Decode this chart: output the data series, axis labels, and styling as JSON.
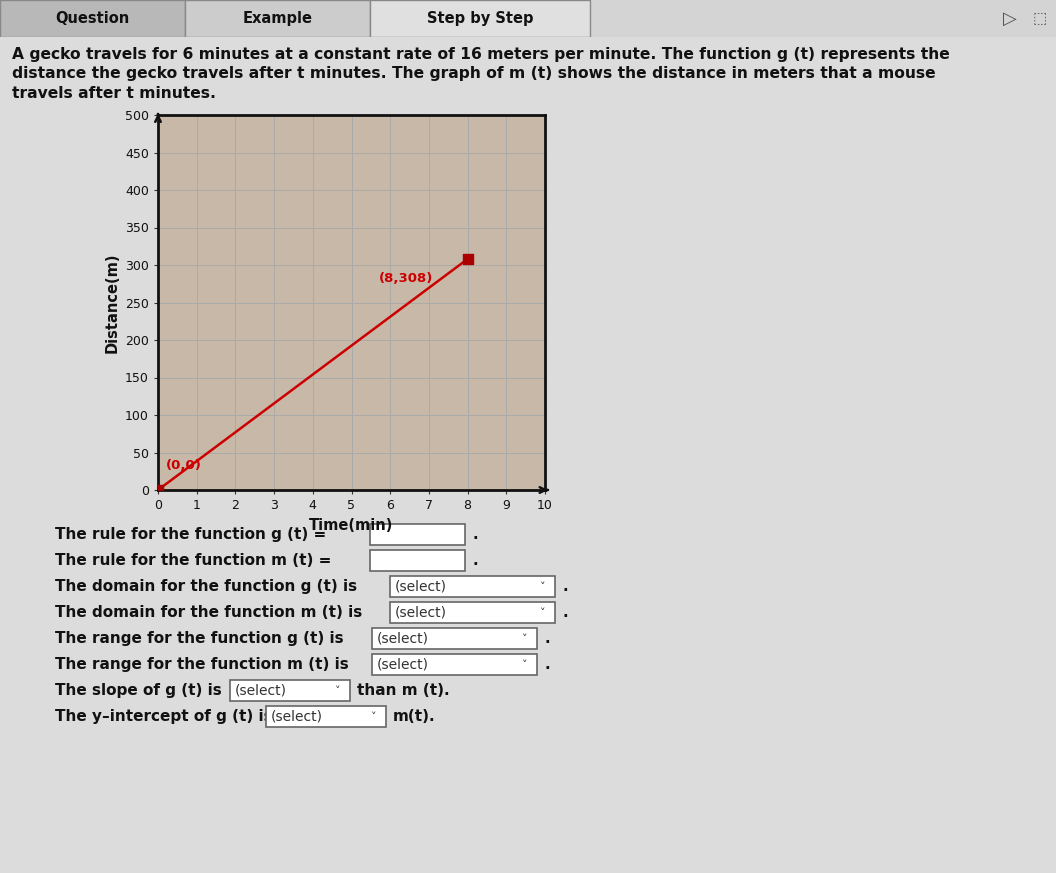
{
  "bg_color": "#d4d4d4",
  "title_text": "A gecko travels for 6 minutes at a constant rate of 16 meters per minute. The function g (t) represents the\ndistance the gecko travels after t minutes. The graph of m (t) shows the distance in meters that a mouse\ntravels after t minutes.",
  "graph": {
    "xlim": [
      0,
      10
    ],
    "ylim": [
      0,
      500
    ],
    "xticks": [
      0,
      1,
      2,
      3,
      4,
      5,
      6,
      7,
      8,
      9,
      10
    ],
    "yticks": [
      0,
      50,
      100,
      150,
      200,
      250,
      300,
      350,
      400,
      450,
      500
    ],
    "xlabel": "Time(min)",
    "ylabel": "Distance(m)",
    "line_x": [
      0,
      8
    ],
    "line_y": [
      0,
      308
    ],
    "line_color": "#cc0000",
    "point1_x": 0,
    "point1_y": 0,
    "point1_label": "(0,0)",
    "point2_x": 8,
    "point2_y": 308,
    "point2_label": "(8,308)",
    "point_color": "#aa0000",
    "point_size": 60,
    "grid_color": "#aaaaaa",
    "grid_inner_color": "#b8a898",
    "axis_color": "#333333",
    "bg_plot": "#c8b8a8"
  },
  "tab_labels": [
    "Question",
    "Example",
    "Step by Step"
  ],
  "arrow_char": "▷"
}
